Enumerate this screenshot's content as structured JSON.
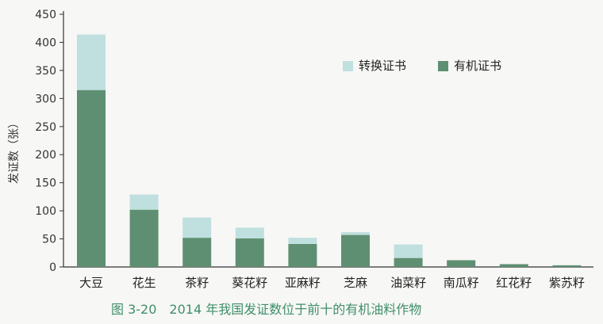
{
  "chart_data": {
    "type": "bar",
    "stacked": true,
    "categories": [
      "大豆",
      "花生",
      "茶籽",
      "葵花籽",
      "亚麻籽",
      "芝麻",
      "油菜籽",
      "南瓜籽",
      "红花籽",
      "紫苏籽"
    ],
    "series": [
      {
        "name": "有机证书",
        "values": [
          315,
          102,
          52,
          51,
          41,
          57,
          16,
          12,
          5,
          3
        ],
        "color": "#5e8f72"
      },
      {
        "name": "转换证书",
        "values": [
          99,
          27,
          36,
          19,
          11,
          5,
          24,
          0,
          0,
          0
        ],
        "color": "#bfe0de"
      }
    ],
    "ylabel": "发证数（张）",
    "ylim": [
      0,
      450
    ],
    "yticks": [
      0,
      50,
      100,
      150,
      200,
      250,
      300,
      350,
      400,
      450
    ],
    "legend_position": "top-right",
    "grid": false,
    "caption": "图 3-20　2014 年我国发证数位于前十的有机油料作物"
  }
}
